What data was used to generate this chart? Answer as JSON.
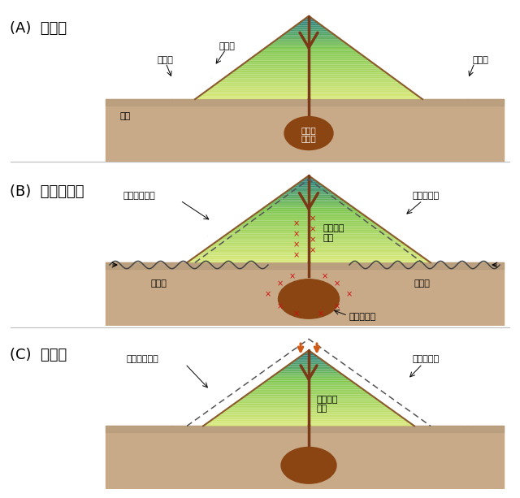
{
  "panel_titles": [
    "(A)  平常時",
    "(B)  噴火の直前",
    "(C)  噴火後"
  ],
  "bg_color": "#ffffff",
  "ground_fill": "#c8aa88",
  "ground_dark": "#b09878",
  "mountain_green_base": "#d8e87a",
  "mountain_green_mid": "#a8c860",
  "mountain_teal_top": "#3a8888",
  "mountain_teal_mid": "#5aaa98",
  "mountain_outline": "#8b5a2b",
  "conduit_color": "#7a3a18",
  "magma_color": "#8b4513",
  "seismo_color": "#9aabb8",
  "seismo_outline": "#778899",
  "incl_color": "#b0bec8",
  "incl_outline": "#8899aa",
  "arrow_color": "#d05a18",
  "cross_color": "#cc1010",
  "wave_color": "#444444",
  "dashed_color": "#555555",
  "label_fs": 8,
  "title_fs": 13,
  "sep_color": "#bbbbbb"
}
